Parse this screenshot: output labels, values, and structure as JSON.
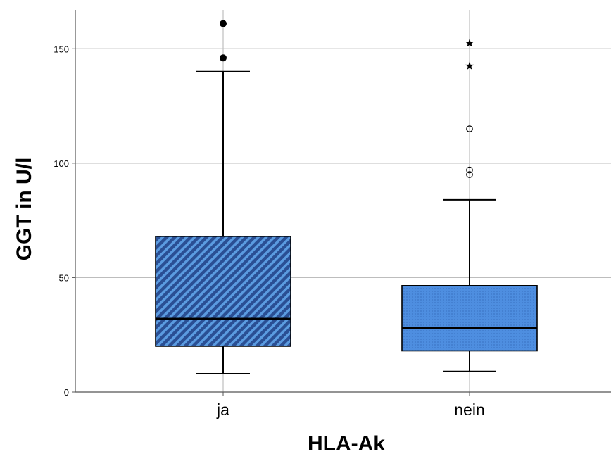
{
  "chart_data": {
    "type": "box",
    "title": "",
    "xlabel": "HLA-Ak",
    "ylabel": "GGT in U/l",
    "ylim": [
      0,
      167
    ],
    "yticks": [
      0,
      50,
      100,
      150
    ],
    "grid": "horizontal",
    "categories": [
      "ja",
      "nein"
    ],
    "boxes": [
      {
        "category": "ja",
        "whisker_low": 8,
        "q1": 20,
        "median": 32,
        "q3": 68,
        "whisker_high": 140,
        "outliers": [
          146,
          161
        ],
        "extremes": [],
        "fill": "#2a4f94",
        "pattern": "diagonal-stripes",
        "pattern_color": "#5b9be0"
      },
      {
        "category": "nein",
        "whisker_low": 9,
        "q1": 18,
        "median": 28,
        "q3": 46.5,
        "whisker_high": 84,
        "outliers": [
          95,
          97,
          115
        ],
        "extremes": [
          143,
          153
        ],
        "fill": "#4e8ee0",
        "pattern": "dots",
        "pattern_color": "#2a5fab"
      }
    ]
  }
}
